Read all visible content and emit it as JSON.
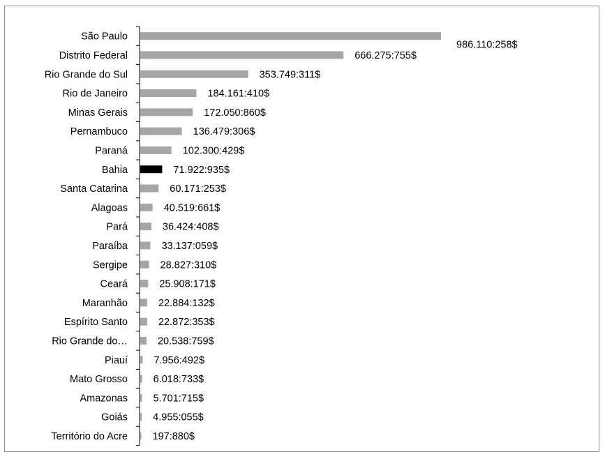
{
  "chart_data": {
    "type": "bar",
    "orientation": "horizontal",
    "categories": [
      "São Paulo",
      "Distrito Federal",
      "Rio Grande do Sul",
      "Rio de Janeiro",
      "Minas Gerais",
      "Pernambuco",
      "Paraná",
      "Bahia",
      "Santa Catarina",
      "Alagoas",
      "Pará",
      "Paraíba",
      "Sergipe",
      "Ceará",
      "Maranhão",
      "Espírito Santo",
      "Rio Grande do…",
      "Piauí",
      "Mato Grosso",
      "Amazonas",
      "Goiás",
      "Território do Acre"
    ],
    "values": [
      986110258,
      666275755,
      353749311,
      184161410,
      172050860,
      136479306,
      102300429,
      71922935,
      60171253,
      40519661,
      36424408,
      33137059,
      28827310,
      25908171,
      22884132,
      22872353,
      20538759,
      7956492,
      6018733,
      5701715,
      4955055,
      197880
    ],
    "value_labels": [
      "986.110:258$",
      "666.275:755$",
      "353.749:311$",
      "184.161:410$",
      "172.050:860$",
      "136.479:306$",
      "102.300:429$",
      "71.922:935$",
      "60.171:253$",
      "40.519:661$",
      "36.424:408$",
      "33.137:059$",
      "28.827:310$",
      "25.908:171$",
      "22.884:132$",
      "22.872:353$",
      "20.538:759$",
      "7.956:492$",
      "6.018:733$",
      "5.701:715$",
      "4.955:055$",
      "197:880$"
    ],
    "highlight_index": 7,
    "colors": {
      "bar": "#a6a6a6",
      "highlight": "#000000",
      "axis": "#000000"
    },
    "title": "",
    "xlabel": "",
    "ylabel": "",
    "xlim": [
      0,
      1000000000
    ],
    "grid": false,
    "legend": "none"
  }
}
